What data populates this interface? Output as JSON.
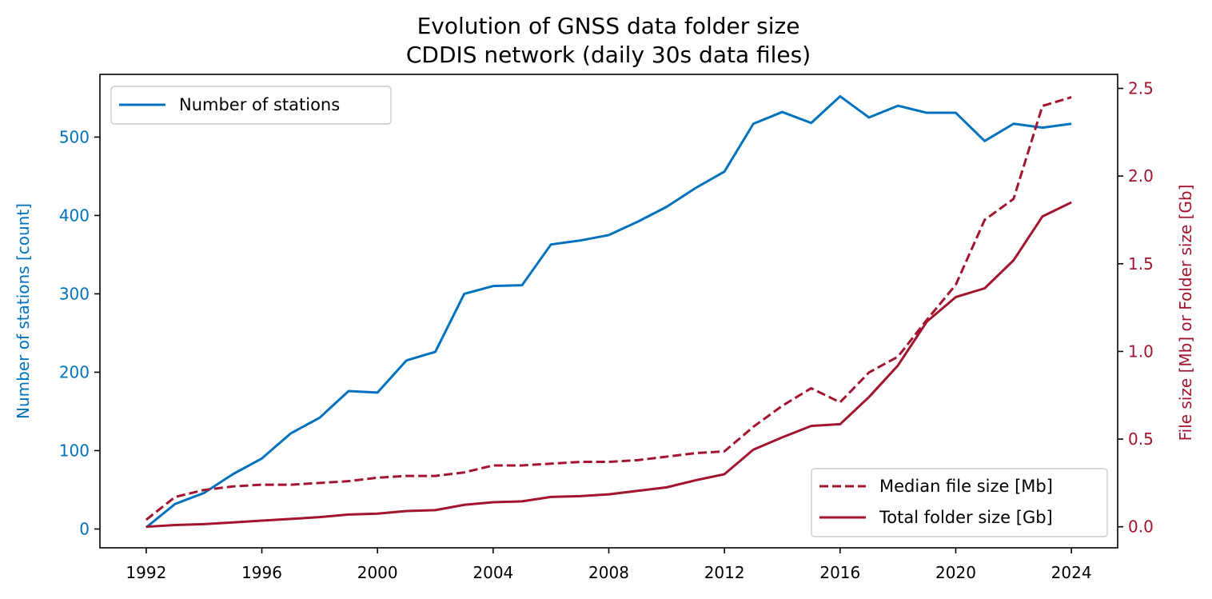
{
  "chart_data": {
    "type": "line",
    "title": "Evolution of GNSS data folder size",
    "subtitle": "CDDIS network (daily 30s data files)",
    "x": [
      1992,
      1993,
      1994,
      1995,
      1996,
      1997,
      1998,
      1999,
      2000,
      2001,
      2002,
      2003,
      2004,
      2005,
      2006,
      2007,
      2008,
      2009,
      2010,
      2011,
      2012,
      2013,
      2014,
      2015,
      2016,
      2017,
      2018,
      2019,
      2020,
      2021,
      2022,
      2023,
      2024
    ],
    "xlim": [
      1990.4,
      2025.6
    ],
    "xticks": [
      1992,
      1996,
      2000,
      2004,
      2008,
      2012,
      2016,
      2020,
      2024
    ],
    "xtick_labels": [
      "1992",
      "1996",
      "2000",
      "2004",
      "2008",
      "2012",
      "2016",
      "2020",
      "2024"
    ],
    "left_axis": {
      "ylabel": "Number of stations [count]",
      "ylim": [
        -24,
        580
      ],
      "ticks": [
        0,
        100,
        200,
        300,
        400,
        500
      ],
      "tick_labels": [
        "0",
        "100",
        "200",
        "300",
        "400",
        "500"
      ],
      "color": "#0072bd"
    },
    "right_axis": {
      "ylabel": "File size [Mb] or Folder size [Gb]",
      "ylim": [
        -0.12,
        2.58
      ],
      "ticks": [
        0.0,
        0.5,
        1.0,
        1.5,
        2.0,
        2.5
      ],
      "tick_labels": [
        "0.0",
        "0.5",
        "1.0",
        "1.5",
        "2.0",
        "2.5"
      ],
      "color": "#a2142f"
    },
    "series": [
      {
        "name": "Number of stations",
        "axis": "left",
        "style": "solid",
        "color": "#0072bd",
        "values": [
          2,
          32,
          46,
          70,
          90,
          122,
          142,
          176,
          174,
          215,
          226,
          300,
          310,
          311,
          363,
          368,
          375,
          392,
          411,
          435,
          456,
          517,
          532,
          518,
          552,
          525,
          540,
          531,
          531,
          495,
          517,
          512,
          517
        ]
      },
      {
        "name": "Median file size [Mb]",
        "axis": "right",
        "style": "dashed",
        "color": "#a2142f",
        "values": [
          0.04,
          0.17,
          0.21,
          0.23,
          0.24,
          0.24,
          0.25,
          0.26,
          0.28,
          0.29,
          0.29,
          0.31,
          0.35,
          0.35,
          0.36,
          0.37,
          0.37,
          0.38,
          0.4,
          0.42,
          0.43,
          0.57,
          0.69,
          0.79,
          0.71,
          0.88,
          0.97,
          1.18,
          1.38,
          1.75,
          1.87,
          2.4,
          2.45
        ]
      },
      {
        "name": "Total folder size [Gb]",
        "axis": "right",
        "style": "solid",
        "color": "#a2142f",
        "values": [
          0.0,
          0.01,
          0.015,
          0.025,
          0.035,
          0.045,
          0.055,
          0.07,
          0.075,
          0.09,
          0.095,
          0.125,
          0.14,
          0.145,
          0.17,
          0.175,
          0.185,
          0.205,
          0.225,
          0.265,
          0.3,
          0.44,
          0.51,
          0.575,
          0.585,
          0.74,
          0.92,
          1.17,
          1.31,
          1.36,
          1.52,
          1.77,
          1.85
        ]
      }
    ],
    "legend_left": {
      "placement": "upper-left",
      "entries": [
        "Number of stations"
      ]
    },
    "legend_right": {
      "placement": "lower-right",
      "entries": [
        "Median file size [Mb]",
        "Total folder size [Gb]"
      ]
    },
    "grid": false
  }
}
